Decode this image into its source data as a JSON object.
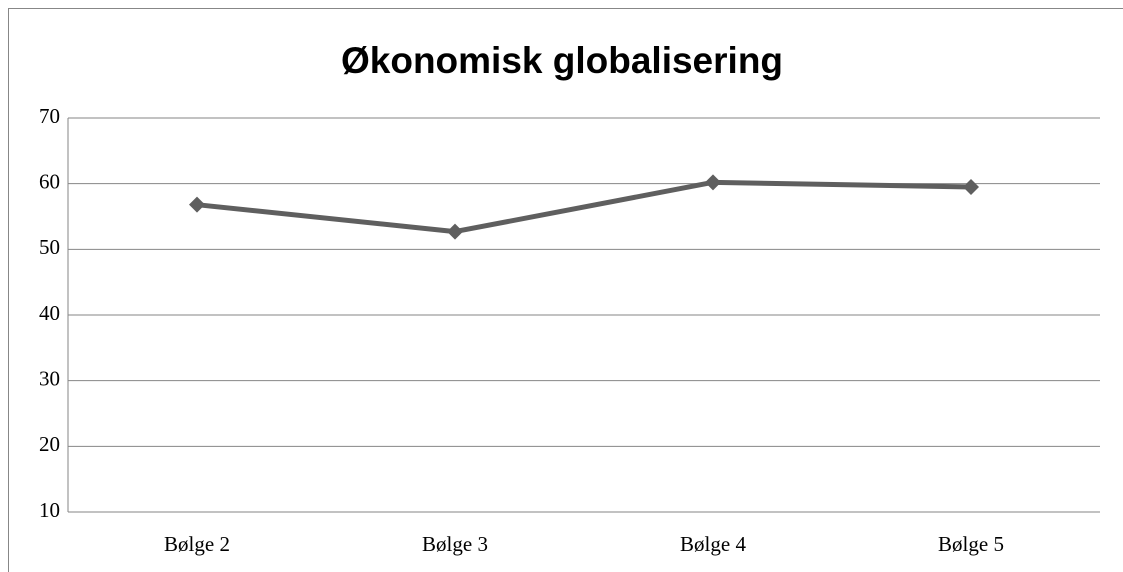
{
  "chart_data": {
    "type": "line",
    "title": "Økonomisk globalisering",
    "categories": [
      "Bølge 2",
      "Bølge 3",
      "Bølge 4",
      "Bølge 5"
    ],
    "values": [
      56.8,
      52.7,
      60.2,
      59.5
    ],
    "color": "#5f5f5f",
    "ylim": [
      10,
      70
    ],
    "yticks": [
      10,
      20,
      30,
      40,
      50,
      60,
      70
    ],
    "grid": true
  }
}
